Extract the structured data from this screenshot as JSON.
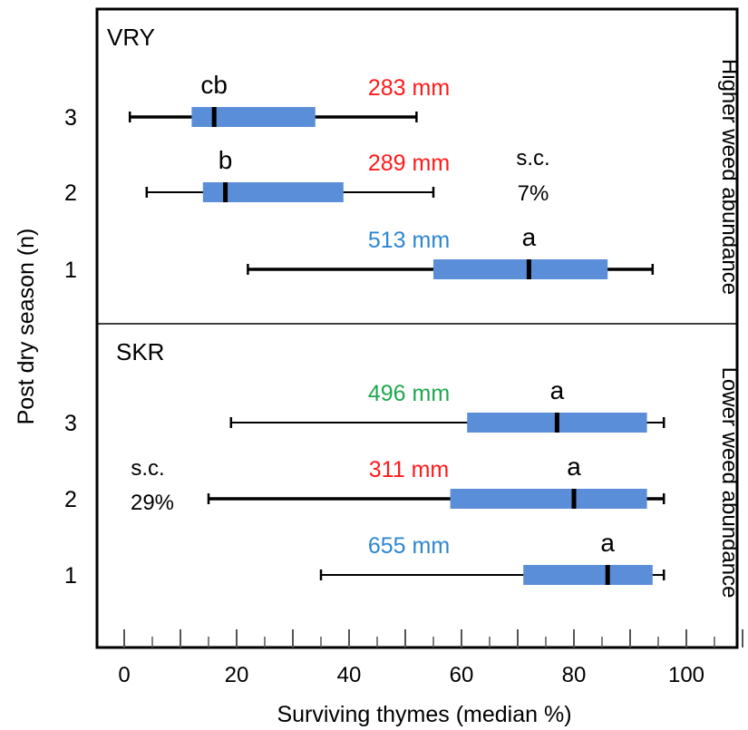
{
  "chart_data": {
    "type": "boxplot",
    "xlabel": "Surviving thymes (median %)",
    "ylabel": "Post dry season (n)",
    "xlim": [
      -5,
      113
    ],
    "x_ticks": [
      0,
      20,
      40,
      60,
      80,
      100
    ],
    "minor_tick_step": 10,
    "grid": false,
    "categories": [
      "3",
      "2",
      "1"
    ],
    "colors": {
      "box": "#5b8ed8",
      "red": "#ff1a1a",
      "blue": "#2e86d0",
      "green": "#1fa84f"
    },
    "panels": [
      {
        "site": "VRY",
        "side_label": "Higher weed abundance",
        "sc_label": "s.c.",
        "sc_value": "7%",
        "boxes": [
          {
            "category": "3",
            "min": 1,
            "q1": 12,
            "median": 16,
            "q3": 34,
            "max": 52,
            "letter": "cb",
            "rain": "283 mm",
            "rain_color": "red",
            "whisker": "thick"
          },
          {
            "category": "2",
            "min": 4,
            "q1": 14,
            "median": 18,
            "q3": 39,
            "max": 55,
            "letter": "b",
            "rain": "289 mm",
            "rain_color": "red",
            "whisker": "thin"
          },
          {
            "category": "1",
            "min": 22,
            "q1": 55,
            "median": 72,
            "q3": 86,
            "max": 94,
            "letter": "a",
            "rain": "513 mm",
            "rain_color": "blue",
            "whisker": "thick"
          }
        ]
      },
      {
        "site": "SKR",
        "side_label": "Lower weed abundance",
        "sc_label": "s.c.",
        "sc_value": "29%",
        "boxes": [
          {
            "category": "3",
            "min": 19,
            "q1": 61,
            "median": 77,
            "q3": 93,
            "max": 96,
            "letter": "a",
            "rain": "496 mm",
            "rain_color": "green",
            "whisker": "thin"
          },
          {
            "category": "2",
            "min": 15,
            "q1": 58,
            "median": 80,
            "q3": 93,
            "max": 96,
            "letter": "a",
            "rain": "311 mm",
            "rain_color": "red",
            "whisker": "thick"
          },
          {
            "category": "1",
            "min": 35,
            "q1": 71,
            "median": 86,
            "q3": 94,
            "max": 96,
            "letter": "a",
            "rain": "655 mm",
            "rain_color": "blue",
            "whisker": "thin"
          }
        ]
      }
    ]
  }
}
